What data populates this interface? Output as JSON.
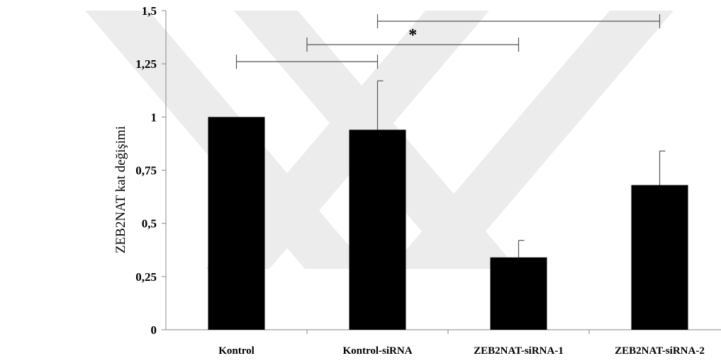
{
  "chart_data": {
    "type": "bar",
    "categories": [
      "Kontrol",
      "Kontrol-siRNA",
      "ZEB2NAT-siRNA-1",
      "ZEB2NAT-siRNA-2"
    ],
    "values": [
      1.0,
      0.94,
      0.34,
      0.68
    ],
    "error_upper": [
      0.0,
      1.17,
      0.42,
      0.84
    ],
    "ylabel": "ZEB2NAT kat değişimi",
    "ylim": [
      0,
      1.5
    ],
    "y_ticks": [
      0,
      0.25,
      0.5,
      0.75,
      1,
      1.25,
      1.5
    ],
    "y_tick_labels": [
      "0",
      "0,25",
      "0,5",
      "0,75",
      "1",
      "1,25",
      "1,5"
    ],
    "bar_color": "#000000",
    "grid": false,
    "legend": "none",
    "significance_brackets": [
      {
        "from": "Kontrol",
        "to": "Kontrol-siRNA",
        "y": 1.26,
        "label": ""
      },
      {
        "from_between": [
          "Kontrol",
          "Kontrol-siRNA"
        ],
        "to": "ZEB2NAT-siRNA-1",
        "y": 1.34,
        "label": "*"
      },
      {
        "from": "Kontrol-siRNA",
        "to": "ZEB2NAT-siRNA-2",
        "y": 1.45,
        "label": ""
      }
    ]
  },
  "watermark": {
    "color": "#ececec"
  }
}
